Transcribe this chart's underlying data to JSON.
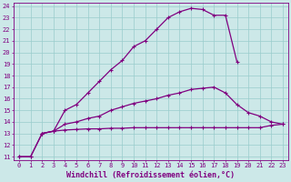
{
  "xlabel": "Windchill (Refroidissement éolien,°C)",
  "bg_color": "#cce8e8",
  "line_color": "#800080",
  "xlim": [
    -0.5,
    23.5
  ],
  "ylim": [
    10.7,
    24.3
  ],
  "xticks": [
    0,
    1,
    2,
    3,
    4,
    5,
    6,
    7,
    8,
    9,
    10,
    11,
    12,
    13,
    14,
    15,
    16,
    17,
    18,
    19,
    20,
    21,
    22,
    23
  ],
  "yticks": [
    11,
    12,
    13,
    14,
    15,
    16,
    17,
    18,
    19,
    20,
    21,
    22,
    23,
    24
  ],
  "curve1_x": [
    0,
    1,
    2,
    3,
    4,
    5,
    6,
    7,
    8,
    9,
    10,
    11,
    12,
    13,
    14,
    15,
    16,
    17,
    18,
    19
  ],
  "curve1_y": [
    11,
    11,
    13,
    13.2,
    15.0,
    15.5,
    16.5,
    17.5,
    18.5,
    19.3,
    20.5,
    21.0,
    22.0,
    23.0,
    23.5,
    23.8,
    23.7,
    23.2,
    23.2,
    19.2
  ],
  "curve2_x": [
    2,
    3,
    4,
    5,
    6,
    7,
    8,
    9,
    10,
    11,
    12,
    13,
    14,
    15,
    16,
    17,
    18,
    19,
    20,
    21,
    22,
    23
  ],
  "curve2_y": [
    13,
    13.2,
    13.8,
    14.0,
    14.3,
    14.5,
    15.0,
    15.3,
    15.6,
    15.8,
    16.0,
    16.3,
    16.5,
    16.8,
    16.9,
    17.0,
    16.5,
    15.5,
    14.8,
    14.5,
    14.0,
    13.8
  ],
  "curve3_x": [
    0,
    1,
    2,
    3,
    4,
    5,
    6,
    7,
    8,
    9,
    10,
    11,
    12,
    13,
    14,
    15,
    16,
    17,
    18,
    19,
    20,
    21,
    22,
    23
  ],
  "curve3_y": [
    11,
    11,
    13,
    13.2,
    13.3,
    13.35,
    13.4,
    13.4,
    13.45,
    13.45,
    13.5,
    13.5,
    13.5,
    13.5,
    13.5,
    13.5,
    13.5,
    13.5,
    13.5,
    13.5,
    13.5,
    13.5,
    13.7,
    13.8
  ],
  "markersize": 3,
  "linewidth": 0.9,
  "tick_fontsize": 5.0,
  "label_fontsize": 6.0,
  "grid_color": "#99cccc",
  "axis_color": "#800080",
  "grid_linewidth": 0.5
}
